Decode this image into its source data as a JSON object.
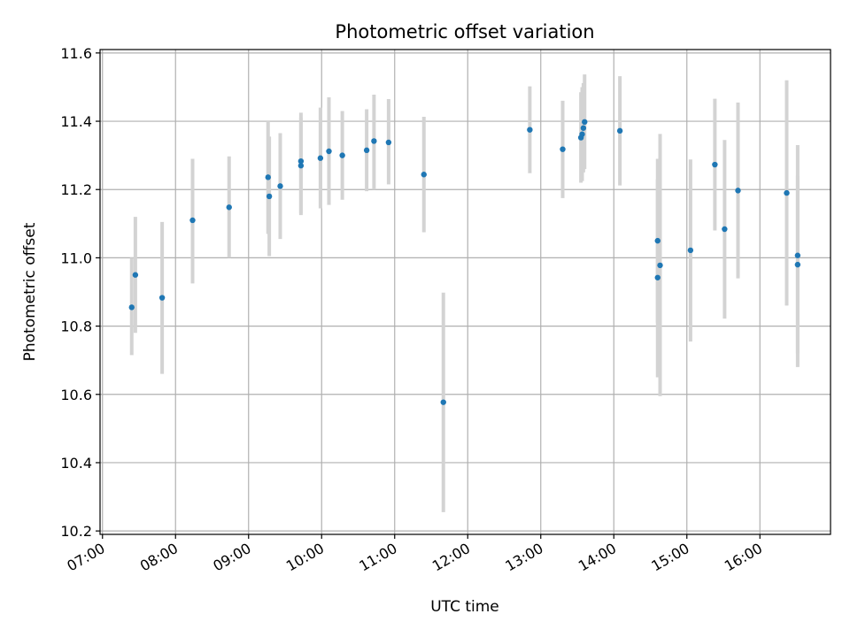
{
  "chart_data": {
    "type": "scatter",
    "title": "Photometric offset variation",
    "xlabel": "UTC time",
    "ylabel": "Photometric offset",
    "x_ticks": [
      "07:00",
      "08:00",
      "09:00",
      "10:00",
      "11:00",
      "12:00",
      "13:00",
      "14:00",
      "15:00",
      "16:00"
    ],
    "y_ticks": [
      "10.2",
      "10.4",
      "10.6",
      "10.8",
      "11.0",
      "11.2",
      "11.4",
      "11.6"
    ],
    "xlim": [
      "06:58",
      "16:58"
    ],
    "ylim": [
      10.19,
      11.61
    ],
    "grid": true,
    "colors": {
      "point": "#1f77b4",
      "errorbar": "#d3d3d3",
      "grid": "#b0b0b0"
    },
    "points": [
      {
        "x": "07:24",
        "y": 10.855,
        "lo": 10.715,
        "hi": 11.0
      },
      {
        "x": "07:27",
        "y": 10.95,
        "lo": 10.78,
        "hi": 11.12
      },
      {
        "x": "07:49",
        "y": 10.883,
        "lo": 10.66,
        "hi": 11.105
      },
      {
        "x": "08:14",
        "y": 11.11,
        "lo": 10.925,
        "hi": 11.29
      },
      {
        "x": "08:44",
        "y": 11.148,
        "lo": 11.0,
        "hi": 11.297
      },
      {
        "x": "09:16",
        "y": 11.236,
        "lo": 11.07,
        "hi": 11.4
      },
      {
        "x": "09:17",
        "y": 11.18,
        "lo": 11.005,
        "hi": 11.355
      },
      {
        "x": "09:26",
        "y": 11.21,
        "lo": 11.055,
        "hi": 11.365
      },
      {
        "x": "09:43",
        "y": 11.283,
        "lo": 11.13,
        "hi": 11.425
      },
      {
        "x": "09:43",
        "y": 11.27,
        "lo": 11.125,
        "hi": 11.41
      },
      {
        "x": "09:59",
        "y": 11.292,
        "lo": 11.145,
        "hi": 11.44
      },
      {
        "x": "10:06",
        "y": 11.312,
        "lo": 11.155,
        "hi": 11.47
      },
      {
        "x": "10:17",
        "y": 11.3,
        "lo": 11.17,
        "hi": 11.43
      },
      {
        "x": "10:37",
        "y": 11.315,
        "lo": 11.195,
        "hi": 11.435
      },
      {
        "x": "10:43",
        "y": 11.342,
        "lo": 11.2,
        "hi": 11.478
      },
      {
        "x": "10:55",
        "y": 11.338,
        "lo": 11.215,
        "hi": 11.465
      },
      {
        "x": "11:24",
        "y": 11.244,
        "lo": 11.075,
        "hi": 11.413
      },
      {
        "x": "11:40",
        "y": 10.577,
        "lo": 10.255,
        "hi": 10.898
      },
      {
        "x": "12:51",
        "y": 11.375,
        "lo": 11.248,
        "hi": 11.502
      },
      {
        "x": "13:18",
        "y": 11.318,
        "lo": 11.175,
        "hi": 11.46
      },
      {
        "x": "13:33",
        "y": 11.352,
        "lo": 11.22,
        "hi": 11.485
      },
      {
        "x": "13:34",
        "y": 11.362,
        "lo": 11.225,
        "hi": 11.5
      },
      {
        "x": "13:35",
        "y": 11.38,
        "lo": 11.25,
        "hi": 11.512
      },
      {
        "x": "13:36",
        "y": 11.398,
        "lo": 11.26,
        "hi": 11.537
      },
      {
        "x": "14:05",
        "y": 11.372,
        "lo": 11.212,
        "hi": 11.532
      },
      {
        "x": "14:36",
        "y": 11.05,
        "lo": 10.81,
        "hi": 11.29
      },
      {
        "x": "14:36",
        "y": 10.942,
        "lo": 10.65,
        "hi": 11.23
      },
      {
        "x": "14:38",
        "y": 10.978,
        "lo": 10.595,
        "hi": 11.363
      },
      {
        "x": "15:03",
        "y": 11.022,
        "lo": 10.755,
        "hi": 11.288
      },
      {
        "x": "15:23",
        "y": 11.273,
        "lo": 11.08,
        "hi": 11.466
      },
      {
        "x": "15:31",
        "y": 11.084,
        "lo": 10.822,
        "hi": 11.345
      },
      {
        "x": "15:42",
        "y": 11.197,
        "lo": 10.94,
        "hi": 11.455
      },
      {
        "x": "16:22",
        "y": 11.19,
        "lo": 10.86,
        "hi": 11.52
      },
      {
        "x": "16:31",
        "y": 11.007,
        "lo": 10.68,
        "hi": 11.33
      },
      {
        "x": "16:31",
        "y": 10.98,
        "lo": 10.72,
        "hi": 11.24
      }
    ]
  }
}
